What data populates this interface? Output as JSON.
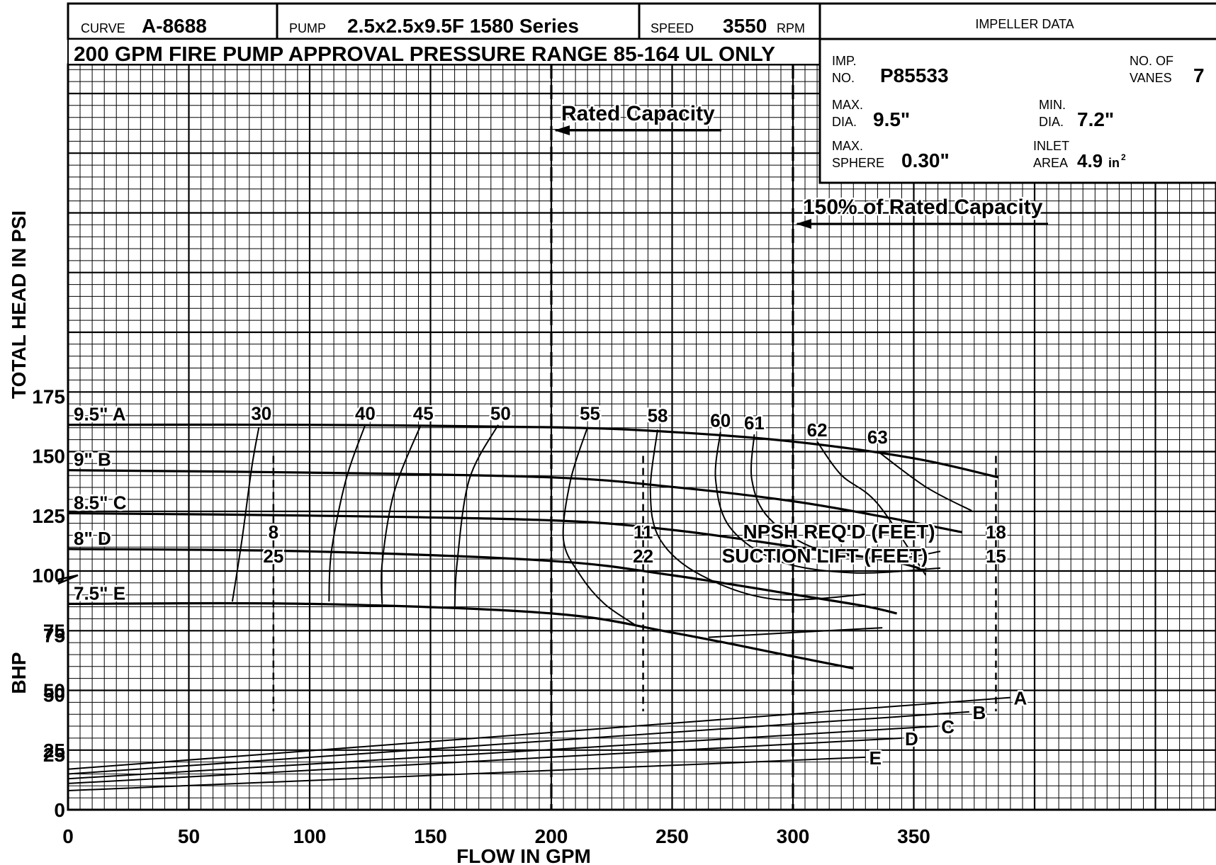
{
  "header": {
    "curve_label": "CURVE",
    "curve_value": "A-8688",
    "pump_label": "PUMP",
    "pump_value": "2.5x2.5x9.5F  1580 Series",
    "speed_label": "SPEED",
    "speed_value": "3550",
    "speed_unit": "RPM",
    "impeller_title": "IMPELLER DATA",
    "subtitle": "200 GPM FIRE PUMP APPROVAL PRESSURE RANGE 85-164 UL ONLY"
  },
  "impeller": {
    "imp_no_label_1": "IMP.",
    "imp_no_label_2": "NO.",
    "imp_no_value": "P85533",
    "vanes_label_1": "NO. OF",
    "vanes_label_2": "VANES",
    "vanes_value": "7",
    "max_dia_label_1": "MAX.",
    "max_dia_label_2": "DIA.",
    "max_dia_value": "9.5\"",
    "min_dia_label_1": "MIN.",
    "min_dia_label_2": "DIA.",
    "min_dia_value": "7.2\"",
    "sphere_label_1": "MAX.",
    "sphere_label_2": "SPHERE",
    "sphere_value": "0.30\"",
    "inlet_label_1": "INLET",
    "inlet_label_2": "AREA",
    "inlet_value": "4.9",
    "inlet_unit": "in",
    "inlet_unit_sup": "2"
  },
  "chart_data": {
    "type": "line",
    "xlabel": "FLOW IN GPM",
    "xlim": [
      0,
      475
    ],
    "x_ticks": [
      0,
      50,
      100,
      150,
      200,
      250,
      300,
      350
    ],
    "head": {
      "ylabel": "TOTAL HEAD IN PSI",
      "ylim": [
        20,
        195
      ],
      "y_ticks": [
        25,
        50,
        75,
        100,
        125,
        150,
        175
      ],
      "series": [
        {
          "name": "9.5\" A",
          "x": [
            0,
            100,
            200,
            250,
            300,
            350,
            385
          ],
          "y": [
            163,
            163,
            162,
            160,
            156,
            149,
            141
          ]
        },
        {
          "name": "9\" B",
          "x": [
            0,
            100,
            200,
            250,
            300,
            340,
            370
          ],
          "y": [
            144,
            143,
            141,
            137,
            131,
            124,
            118
          ]
        },
        {
          "name": "8.5\" C",
          "x": [
            0,
            100,
            200,
            250,
            300,
            340,
            355
          ],
          "y": [
            126,
            125,
            123,
            119,
            112,
            106,
            102
          ]
        },
        {
          "name": "8\" D",
          "x": [
            0,
            100,
            200,
            250,
            300,
            330,
            343
          ],
          "y": [
            111,
            110,
            106,
            100,
            92,
            87,
            84
          ]
        },
        {
          "name": "7.5\" E",
          "x": [
            0,
            100,
            200,
            250,
            300,
            325
          ],
          "y": [
            88,
            88,
            84,
            76,
            66,
            61
          ]
        }
      ],
      "efficiency_curves": [
        {
          "label": "30",
          "label_at": [
            80,
            164
          ],
          "x": [
            79,
            76,
            72,
            68
          ],
          "y": [
            162,
            145,
            115,
            89
          ]
        },
        {
          "label": "40",
          "label_at": [
            123,
            164
          ],
          "x": [
            123,
            115,
            109,
            108
          ],
          "y": [
            163,
            140,
            110,
            89
          ]
        },
        {
          "label": "45",
          "label_at": [
            147,
            164
          ],
          "x": [
            146,
            135,
            130,
            130
          ],
          "y": [
            163,
            135,
            105,
            88
          ]
        },
        {
          "label": "50",
          "label_at": [
            179,
            164
          ],
          "x": [
            178,
            166,
            161,
            160
          ],
          "y": [
            163,
            140,
            105,
            86
          ]
        },
        {
          "label": "55",
          "label_at": [
            216,
            164
          ],
          "x": [
            215,
            208,
            205,
            212,
            222,
            235
          ],
          "y": [
            162,
            140,
            115,
            100,
            88,
            79
          ]
        },
        {
          "label": "58",
          "label_at": [
            244,
            163
          ],
          "x": [
            244,
            241,
            245,
            262,
            292,
            330
          ],
          "y": [
            161,
            135,
            115,
            100,
            90,
            92
          ]
        },
        {
          "label": "60",
          "label_at": [
            270,
            161
          ],
          "x": [
            270,
            268,
            274,
            294,
            325,
            361
          ],
          "y": [
            160,
            140,
            120,
            106,
            101,
            103
          ]
        },
        {
          "label": "61",
          "label_at": [
            284,
            160
          ],
          "x": [
            284,
            283,
            290,
            310,
            340,
            361
          ],
          "y": [
            159,
            140,
            124,
            111,
            107,
            110
          ]
        },
        {
          "label": "62",
          "label_at": [
            310,
            157
          ],
          "x": [
            310,
            320,
            335,
            355
          ],
          "y": [
            156,
            142,
            130,
            100
          ]
        },
        {
          "label": "63",
          "label_at": [
            335,
            154
          ],
          "x": [
            335,
            355,
            374
          ],
          "y": [
            152,
            137,
            127
          ]
        }
      ],
      "extra_lines": [
        {
          "x": [
            265,
            300,
            337
          ],
          "y": [
            74,
            76,
            78
          ]
        }
      ],
      "npsh_markers": [
        {
          "x": 85,
          "npsh": "8",
          "suction_lift": "25"
        },
        {
          "x": 238,
          "npsh": "11",
          "suction_lift": "22"
        },
        {
          "x": 384,
          "npsh": "18",
          "suction_lift": "15"
        }
      ],
      "npsh_label": "NPSH REQ'D (FEET)",
      "suction_label": "SUCTION LIFT (FEET)",
      "annotations": [
        {
          "text": "Rated Capacity",
          "at_x": 200
        },
        {
          "text": "150% of Rated Capacity",
          "at_x": 300
        }
      ]
    },
    "bhp": {
      "ylabel": "BHP",
      "ylim": [
        0,
        85
      ],
      "y_ticks": [
        0,
        25,
        50,
        75
      ],
      "series": [
        {
          "name": "A",
          "x": [
            0,
            390
          ],
          "y": [
            17,
            47
          ]
        },
        {
          "name": "B",
          "x": [
            0,
            373
          ],
          "y": [
            15,
            41
          ]
        },
        {
          "name": "C",
          "x": [
            0,
            360
          ],
          "y": [
            13,
            35
          ]
        },
        {
          "name": "D",
          "x": [
            0,
            345
          ],
          "y": [
            11,
            30
          ]
        },
        {
          "name": "E",
          "x": [
            0,
            330
          ],
          "y": [
            8,
            22
          ]
        }
      ]
    },
    "grid": true
  }
}
